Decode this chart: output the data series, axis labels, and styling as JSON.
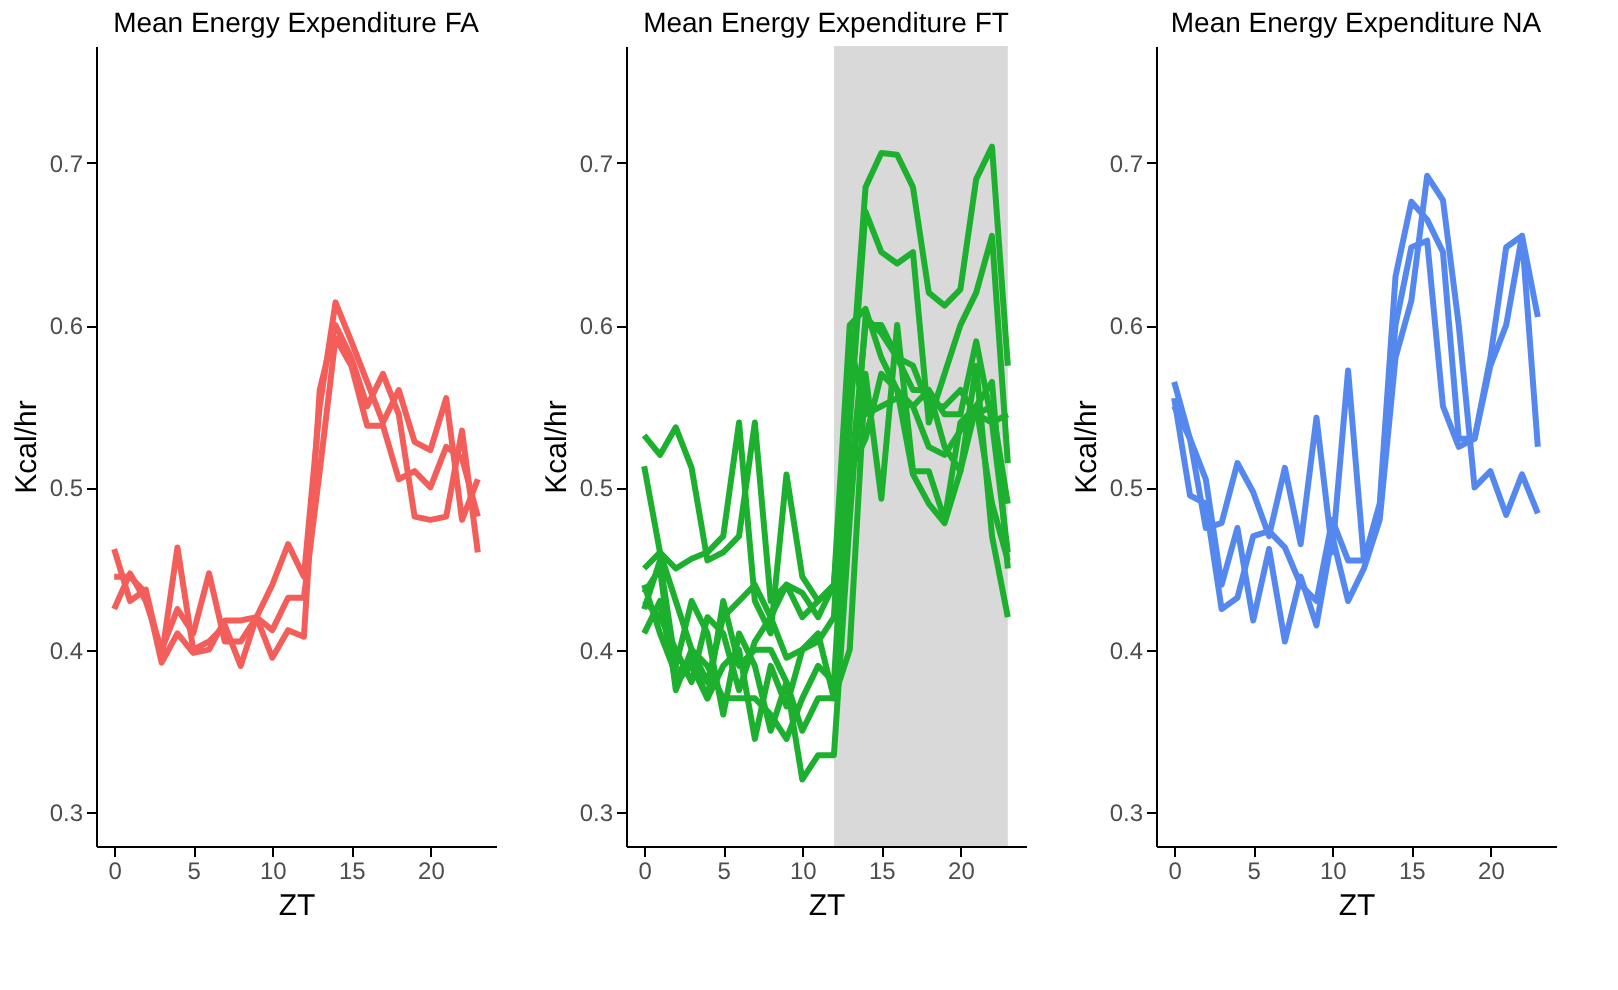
{
  "chart_data": [
    {
      "type": "line",
      "title": "Mean Energy Expenditure FA",
      "xlabel": "ZT",
      "ylabel": "Kcal/hr",
      "x": [
        0,
        1,
        2,
        3,
        4,
        5,
        6,
        7,
        8,
        9,
        10,
        11,
        12,
        13,
        14,
        15,
        16,
        17,
        18,
        19,
        20,
        21,
        22,
        23
      ],
      "xlim": [
        -1.15,
        24.15
      ],
      "xticks": [
        0,
        5,
        10,
        15,
        20
      ],
      "ylim": [
        0.279,
        0.772
      ],
      "yticks": [
        0.3,
        0.4,
        0.5,
        0.6,
        0.7
      ],
      "grid": false,
      "series": [
        {
          "color": "#f35e5a",
          "values": [
            0.462,
            0.43,
            0.437,
            0.395,
            0.463,
            0.4,
            0.405,
            0.415,
            0.39,
            0.42,
            0.44,
            0.465,
            0.445,
            0.55,
            0.614,
            0.59,
            0.565,
            0.54,
            0.56,
            0.528,
            0.523,
            0.555,
            0.48,
            0.505
          ]
        },
        {
          "color": "#f35e5a",
          "values": [
            0.425,
            0.447,
            0.43,
            0.4,
            0.425,
            0.41,
            0.447,
            0.405,
            0.405,
            0.42,
            0.395,
            0.412,
            0.408,
            0.56,
            0.6,
            0.58,
            0.55,
            0.57,
            0.545,
            0.482,
            0.48,
            0.482,
            0.535,
            0.46
          ]
        },
        {
          "color": "#f35e5a",
          "values": [
            0.445,
            0.445,
            0.435,
            0.392,
            0.41,
            0.398,
            0.4,
            0.418,
            0.418,
            0.42,
            0.412,
            0.432,
            0.432,
            0.51,
            0.592,
            0.575,
            0.538,
            0.538,
            0.505,
            0.51,
            0.5,
            0.525,
            0.518,
            0.482
          ]
        }
      ]
    },
    {
      "type": "line",
      "title": "Mean Energy Expenditure FT",
      "xlabel": "ZT",
      "ylabel": "Kcal/hr",
      "x": [
        0,
        1,
        2,
        3,
        4,
        5,
        6,
        7,
        8,
        9,
        10,
        11,
        12,
        13,
        14,
        15,
        16,
        17,
        18,
        19,
        20,
        21,
        22,
        23
      ],
      "xlim": [
        -1.15,
        24.15
      ],
      "xticks": [
        0,
        5,
        10,
        15,
        20
      ],
      "ylim": [
        0.279,
        0.772
      ],
      "yticks": [
        0.3,
        0.4,
        0.5,
        0.6,
        0.7
      ],
      "grid": false,
      "bands": [
        {
          "axis": "x",
          "from": 12,
          "to": 23,
          "color": "#d9d9d9"
        }
      ],
      "series": [
        {
          "color": "#1cb02e",
          "values": [
            0.532,
            0.52,
            0.537,
            0.512,
            0.455,
            0.46,
            0.47,
            0.54,
            0.43,
            0.44,
            0.435,
            0.42,
            0.44,
            0.55,
            0.685,
            0.706,
            0.705,
            0.685,
            0.62,
            0.612,
            0.622,
            0.69,
            0.71,
            0.575
          ]
        },
        {
          "color": "#1cb02e",
          "values": [
            0.513,
            0.46,
            0.43,
            0.4,
            0.39,
            0.37,
            0.37,
            0.37,
            0.36,
            0.345,
            0.37,
            0.39,
            0.38,
            0.54,
            0.67,
            0.645,
            0.638,
            0.645,
            0.54,
            0.57,
            0.6,
            0.62,
            0.655,
            0.515
          ]
        },
        {
          "color": "#1cb02e",
          "values": [
            0.45,
            0.46,
            0.45,
            0.456,
            0.46,
            0.47,
            0.54,
            0.43,
            0.41,
            0.508,
            0.445,
            0.43,
            0.44,
            0.6,
            0.61,
            0.58,
            0.56,
            0.55,
            0.56,
            0.545,
            0.545,
            0.59,
            0.54,
            0.46
          ]
        },
        {
          "color": "#1cb02e",
          "values": [
            0.435,
            0.45,
            0.375,
            0.4,
            0.38,
            0.42,
            0.43,
            0.44,
            0.42,
            0.44,
            0.42,
            0.43,
            0.44,
            0.5,
            0.6,
            0.6,
            0.58,
            0.575,
            0.55,
            0.55,
            0.56,
            0.545,
            0.54,
            0.545
          ]
        },
        {
          "color": "#1cb02e",
          "values": [
            0.425,
            0.455,
            0.39,
            0.43,
            0.41,
            0.36,
            0.41,
            0.39,
            0.35,
            0.38,
            0.32,
            0.335,
            0.335,
            0.48,
            0.605,
            0.595,
            0.58,
            0.56,
            0.56,
            0.525,
            0.51,
            0.575,
            0.47,
            0.42
          ]
        },
        {
          "color": "#1cb02e",
          "values": [
            0.41,
            0.43,
            0.38,
            0.39,
            0.37,
            0.43,
            0.39,
            0.4,
            0.4,
            0.38,
            0.35,
            0.37,
            0.37,
            0.4,
            0.57,
            0.493,
            0.6,
            0.51,
            0.51,
            0.48,
            0.54,
            0.55,
            0.49,
            0.455
          ]
        },
        {
          "color": "#1cb02e",
          "values": [
            0.43,
            0.42,
            0.4,
            0.38,
            0.42,
            0.41,
            0.375,
            0.405,
            0.42,
            0.395,
            0.4,
            0.405,
            0.42,
            0.59,
            0.545,
            0.55,
            0.555,
            0.55,
            0.525,
            0.52,
            0.535,
            0.545,
            0.55,
            0.49
          ]
        },
        {
          "color": "#1cb02e",
          "values": [
            0.44,
            0.41,
            0.385,
            0.395,
            0.37,
            0.39,
            0.4,
            0.345,
            0.39,
            0.365,
            0.4,
            0.41,
            0.37,
            0.51,
            0.53,
            0.57,
            0.56,
            0.508,
            0.49,
            0.478,
            0.51,
            0.55,
            0.565,
            0.45
          ]
        }
      ]
    },
    {
      "type": "line",
      "title": "Mean Energy Expenditure NA",
      "xlabel": "ZT",
      "ylabel": "Kcal/hr",
      "x": [
        0,
        1,
        2,
        3,
        4,
        5,
        6,
        7,
        8,
        9,
        10,
        11,
        12,
        13,
        14,
        15,
        16,
        17,
        18,
        19,
        20,
        21,
        22,
        23
      ],
      "xlim": [
        -1.15,
        24.15
      ],
      "xticks": [
        0,
        5,
        10,
        15,
        20
      ],
      "ylim": [
        0.279,
        0.772
      ],
      "yticks": [
        0.3,
        0.4,
        0.5,
        0.6,
        0.7
      ],
      "grid": false,
      "series": [
        {
          "color": "#5588ee",
          "values": [
            0.565,
            0.53,
            0.475,
            0.478,
            0.515,
            0.497,
            0.47,
            0.512,
            0.465,
            0.543,
            0.46,
            0.572,
            0.455,
            0.49,
            0.63,
            0.676,
            0.665,
            0.645,
            0.53,
            0.53,
            0.575,
            0.6,
            0.655,
            0.525
          ]
        },
        {
          "color": "#5588ee",
          "values": [
            0.555,
            0.495,
            0.49,
            0.425,
            0.432,
            0.47,
            0.473,
            0.463,
            0.44,
            0.43,
            0.48,
            0.455,
            0.455,
            0.485,
            0.6,
            0.648,
            0.652,
            0.55,
            0.525,
            0.53,
            0.58,
            0.648,
            0.655,
            0.605
          ]
        },
        {
          "color": "#5588ee",
          "values": [
            0.55,
            0.53,
            0.505,
            0.44,
            0.475,
            0.418,
            0.462,
            0.405,
            0.445,
            0.415,
            0.47,
            0.43,
            0.45,
            0.48,
            0.58,
            0.615,
            0.692,
            0.677,
            0.6,
            0.5,
            0.51,
            0.483,
            0.508,
            0.484
          ]
        }
      ]
    }
  ]
}
